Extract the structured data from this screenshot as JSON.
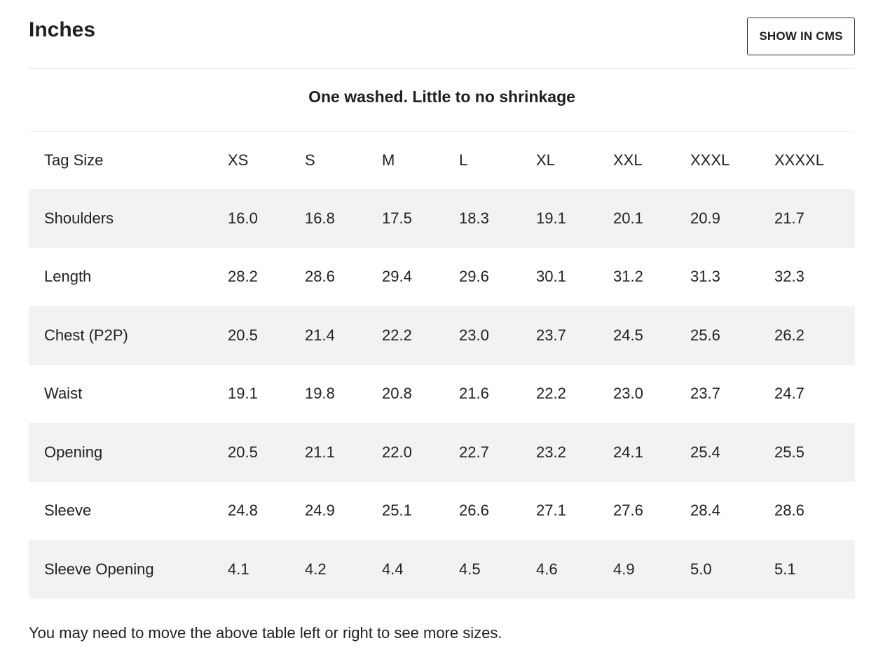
{
  "header": {
    "title": "Inches",
    "cms_button_label": "SHOW IN CMS"
  },
  "subtitle": "One washed. Little to no shrinkage",
  "table": {
    "columns": [
      "Tag Size",
      "XS",
      "S",
      "M",
      "L",
      "XL",
      "XXL",
      "XXXL",
      "XXXXL"
    ],
    "rows": [
      {
        "label": "Shoulders",
        "values": [
          "16.0",
          "16.8",
          "17.5",
          "18.3",
          "19.1",
          "20.1",
          "20.9",
          "21.7"
        ]
      },
      {
        "label": "Length",
        "values": [
          "28.2",
          "28.6",
          "29.4",
          "29.6",
          "30.1",
          "31.2",
          "31.3",
          "32.3"
        ]
      },
      {
        "label": "Chest (P2P)",
        "values": [
          "20.5",
          "21.4",
          "22.2",
          "23.0",
          "23.7",
          "24.5",
          "25.6",
          "26.2"
        ]
      },
      {
        "label": "Waist",
        "values": [
          "19.1",
          "19.8",
          "20.8",
          "21.6",
          "22.2",
          "23.0",
          "23.7",
          "24.7"
        ]
      },
      {
        "label": "Opening",
        "values": [
          "20.5",
          "21.1",
          "22.0",
          "22.7",
          "23.2",
          "24.1",
          "25.4",
          "25.5"
        ]
      },
      {
        "label": "Sleeve",
        "values": [
          "24.8",
          "24.9",
          "25.1",
          "26.6",
          "27.1",
          "27.6",
          "28.4",
          "28.6"
        ]
      },
      {
        "label": "Sleeve Opening",
        "values": [
          "4.1",
          "4.2",
          "4.4",
          "4.5",
          "4.6",
          "4.9",
          "5.0",
          "5.1"
        ]
      }
    ]
  },
  "footer_note": "You may need to move the above table left or right to see more sizes."
}
